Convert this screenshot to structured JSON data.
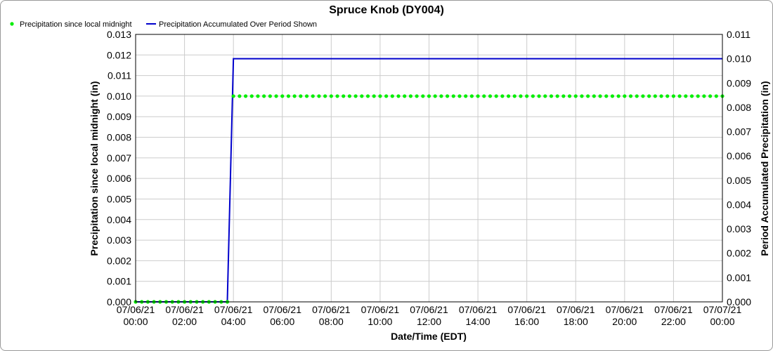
{
  "chart_data": {
    "type": "line",
    "title": "Spruce Knob (DY004)",
    "xlabel": "Date/Time (EDT)",
    "ylabel_left": "Precipitation since local midnight (in)",
    "ylabel_right": "Period Accumulated Precipitation (in)",
    "ylim_left": [
      0,
      0.013
    ],
    "ylim_right": [
      0,
      0.011
    ],
    "yticks_left": [
      "0.000",
      "0.001",
      "0.002",
      "0.003",
      "0.004",
      "0.005",
      "0.006",
      "0.007",
      "0.008",
      "0.009",
      "0.010",
      "0.011",
      "0.012",
      "0.013"
    ],
    "yticks_right": [
      "0.000",
      "0.001",
      "0.002",
      "0.003",
      "0.004",
      "0.005",
      "0.006",
      "0.007",
      "0.008",
      "0.009",
      "0.010",
      "0.011"
    ],
    "x_range_hours": [
      0,
      24
    ],
    "xticks": [
      {
        "date": "07/06/21",
        "time": "00:00"
      },
      {
        "date": "07/06/21",
        "time": "02:00"
      },
      {
        "date": "07/06/21",
        "time": "04:00"
      },
      {
        "date": "07/06/21",
        "time": "06:00"
      },
      {
        "date": "07/06/21",
        "time": "08:00"
      },
      {
        "date": "07/06/21",
        "time": "10:00"
      },
      {
        "date": "07/06/21",
        "time": "12:00"
      },
      {
        "date": "07/06/21",
        "time": "14:00"
      },
      {
        "date": "07/06/21",
        "time": "16:00"
      },
      {
        "date": "07/06/21",
        "time": "18:00"
      },
      {
        "date": "07/06/21",
        "time": "20:00"
      },
      {
        "date": "07/06/21",
        "time": "22:00"
      },
      {
        "date": "07/07/21",
        "time": "00:00"
      }
    ],
    "grid": true,
    "legend_position": "top-left",
    "series": [
      {
        "name": "Precipitation since local midnight",
        "style": "points",
        "axis": "left",
        "color": "#00ee00",
        "interval_minutes": 15,
        "segments": [
          {
            "from": "00:00",
            "to": "03:45",
            "value": 0.0
          },
          {
            "from": "04:00",
            "to": "24:00",
            "value": 0.01
          }
        ]
      },
      {
        "name": "Precipitation Accumulated Over Period Shown",
        "style": "line",
        "axis": "right",
        "color": "#0000cc",
        "points": [
          {
            "x": "00:00",
            "y": 0.0
          },
          {
            "x": "03:45",
            "y": 0.0
          },
          {
            "x": "04:00",
            "y": 0.01
          },
          {
            "x": "24:00",
            "y": 0.01
          }
        ]
      }
    ]
  }
}
